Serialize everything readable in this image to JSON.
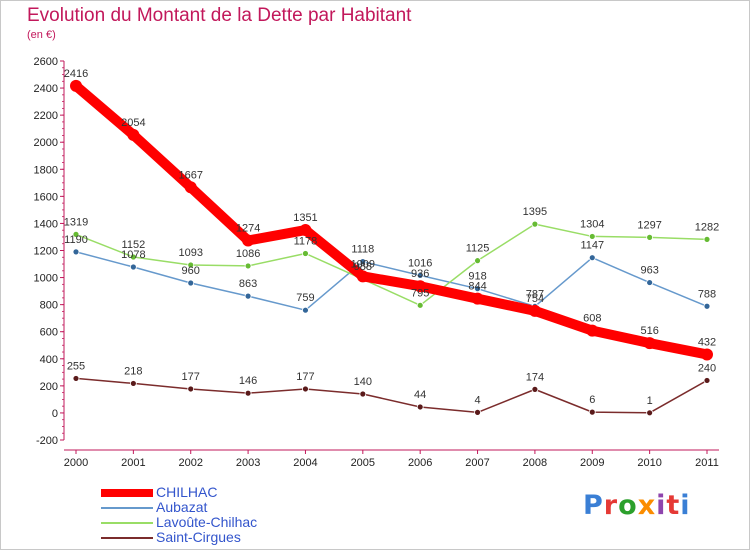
{
  "title": "Evolution du Montant de la Dette par Habitant",
  "subtitle": "(en €)",
  "logo_text": "Proxiti",
  "chart_data": {
    "type": "line",
    "title": "Evolution du Montant de la Dette par Habitant",
    "subtitle": "(en €)",
    "x": [
      "2000",
      "2001",
      "2002",
      "2003",
      "2004",
      "2005",
      "2006",
      "2007",
      "2008",
      "2009",
      "2010",
      "2011"
    ],
    "ylim": [
      -200,
      2600
    ],
    "yticks": [
      -200,
      0,
      200,
      400,
      600,
      800,
      1000,
      1200,
      1400,
      1600,
      1800,
      2000,
      2200,
      2400,
      2600
    ],
    "grid": false,
    "legend_position": "bottom-left",
    "series": [
      {
        "name": "CHILHAC",
        "color": "#ff0000",
        "values": [
          2416,
          2054,
          1667,
          1274,
          1351,
          1009,
          936,
          844,
          754,
          608,
          516,
          432
        ]
      },
      {
        "name": "Aubazat",
        "color": "#6699cc",
        "values": [
          1190,
          1078,
          960,
          863,
          759,
          1118,
          1016,
          918,
          787,
          1147,
          963,
          788
        ]
      },
      {
        "name": "Lavoûte-Chilhac",
        "color": "#99dd66",
        "values": [
          1319,
          1152,
          1093,
          1086,
          1178,
          988,
          795,
          1125,
          1395,
          1304,
          1297,
          1282
        ]
      },
      {
        "name": "Saint-Cirgues",
        "color": "#7b2c2c",
        "values": [
          255,
          218,
          177,
          146,
          177,
          140,
          44,
          4,
          174,
          6,
          1,
          240
        ]
      }
    ]
  }
}
